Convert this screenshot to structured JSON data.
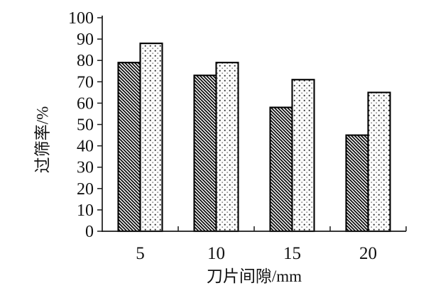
{
  "chart_data": {
    "type": "bar",
    "title": "",
    "categories": [
      "5",
      "10",
      "15",
      "20"
    ],
    "series": [
      {
        "name": "hatched",
        "pattern": "diagonal-hatch",
        "values": [
          79,
          73,
          58,
          45
        ]
      },
      {
        "name": "dotted",
        "pattern": "dot-grid",
        "values": [
          88,
          79,
          71,
          65
        ]
      }
    ],
    "xlabel": "刀片间隙/mm",
    "ylabel": "过筛率/%",
    "ylim": [
      0,
      100
    ],
    "ytick_step": 10,
    "yticks": [
      "0",
      "10",
      "20",
      "30",
      "40",
      "50",
      "60",
      "70",
      "80",
      "90",
      "100"
    ],
    "grid": false,
    "legend": "none",
    "layout_hint": "vertical grouped bars, ticks outward on y-axis, category-boundary ticks on x-axis",
    "colors": {
      "background": "#ffffff",
      "axis": "#1a1a1a",
      "text": "#111111",
      "bar_outline": "#000000",
      "hatch_ink": "#000000",
      "dot_dark": "#1a1a1a",
      "dot_light": "#8a8a8a"
    }
  }
}
